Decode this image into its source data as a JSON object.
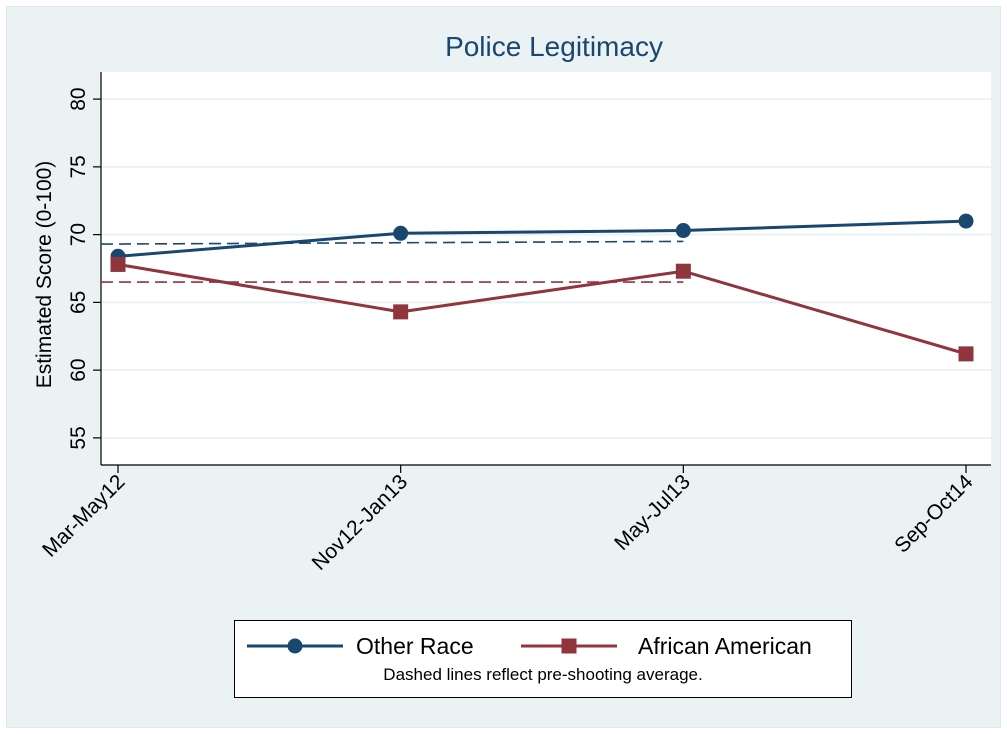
{
  "chart_data": {
    "type": "line",
    "title": "Police Legitimacy",
    "ylabel": "Estimated Score (0-100)",
    "xlabel": "",
    "categories": [
      "Mar-May12",
      "Nov12-Jan13",
      "May-Jul13",
      "Sep-Oct14"
    ],
    "ylim": [
      53,
      82
    ],
    "yticks": [
      55,
      60,
      65,
      70,
      75,
      80
    ],
    "grid": true,
    "series": [
      {
        "name": "Other Race",
        "values": [
          68.4,
          70.1,
          70.3,
          71.0
        ],
        "color": "#1a476f",
        "marker": "circle"
      },
      {
        "name": "African American",
        "values": [
          67.8,
          64.3,
          67.3,
          61.2
        ],
        "color": "#90353b",
        "marker": "square"
      }
    ],
    "reference_lines": [
      {
        "series": "Other Race",
        "from_index": 0,
        "to_index": 2,
        "start_value": 69.3,
        "end_value": 69.5,
        "style": "dashed",
        "color": "#1a476f"
      },
      {
        "series": "African American",
        "from_index": 0,
        "to_index": 2,
        "start_value": 66.5,
        "end_value": 66.5,
        "style": "dashed",
        "color": "#90353b"
      }
    ],
    "legend_position": "bottom",
    "legend_note": "Dashed lines reflect pre-shooting average.",
    "colors": {
      "background": "#eaf2f3",
      "plot_background": "#ffffff",
      "grid": "#eaf2f3",
      "title": "#1a476f"
    }
  }
}
